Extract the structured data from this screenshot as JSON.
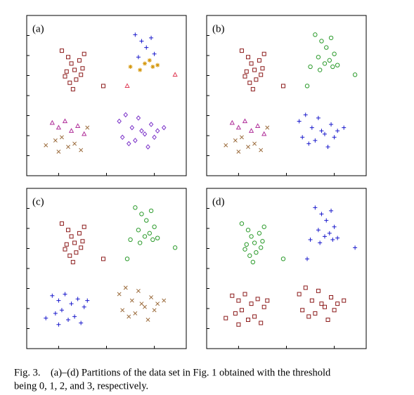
{
  "chart_data": [
    {
      "type": "scatter",
      "title": "(a)",
      "xlim": [
        0,
        100
      ],
      "ylim": [
        0,
        100
      ],
      "xticks": [
        20,
        50,
        80
      ],
      "yticks": [
        12.5,
        25,
        37.5,
        50,
        62.5,
        75,
        87.5
      ],
      "series": [
        {
          "color": "#8b1a1a",
          "marker": "square",
          "x": [
            22,
            26,
            28,
            30,
            24,
            33,
            35,
            27,
            31,
            36,
            29,
            25,
            34,
            48
          ],
          "y": [
            78,
            74,
            70,
            66,
            62,
            72,
            67,
            58,
            60,
            76,
            54,
            65,
            63,
            56
          ]
        },
        {
          "color": "#1a1acc",
          "marker": "plus",
          "x": [
            68,
            72,
            75,
            78,
            80,
            70
          ],
          "y": [
            88,
            84,
            80,
            86,
            76,
            74
          ]
        },
        {
          "color": "#d4960a",
          "marker": "star",
          "x": [
            74,
            77,
            65,
            71,
            79,
            82
          ],
          "y": [
            70,
            72,
            68,
            66,
            68,
            69
          ]
        },
        {
          "color": "#e0405a",
          "marker": "triangle",
          "x": [
            93,
            63
          ],
          "y": [
            63,
            56
          ]
        },
        {
          "color": "#b0309a",
          "marker": "triangle",
          "x": [
            16,
            20,
            24,
            28,
            32,
            36
          ],
          "y": [
            33,
            30,
            34,
            28,
            31,
            26
          ]
        },
        {
          "color": "#9a6a3a",
          "marker": "cross",
          "x": [
            18,
            22,
            26,
            30,
            34,
            12,
            38,
            20
          ],
          "y": [
            22,
            24,
            18,
            20,
            16,
            19,
            30,
            15
          ]
        },
        {
          "color": "#7a30c8",
          "marker": "diamond",
          "x": [
            58,
            62,
            66,
            70,
            74,
            78,
            82,
            86,
            60,
            64,
            68,
            72,
            76,
            80
          ],
          "y": [
            34,
            38,
            30,
            36,
            26,
            32,
            28,
            30,
            24,
            20,
            22,
            28,
            18,
            24
          ]
        }
      ]
    },
    {
      "type": "scatter",
      "title": "(b)",
      "xlim": [
        0,
        100
      ],
      "ylim": [
        0,
        100
      ],
      "xticks": [
        20,
        50,
        80
      ],
      "yticks": [
        12.5,
        25,
        37.5,
        50,
        62.5,
        75,
        87.5
      ],
      "series": [
        {
          "color": "#8b1a1a",
          "marker": "square",
          "x": [
            22,
            26,
            28,
            30,
            24,
            33,
            35,
            27,
            31,
            36,
            29,
            25,
            34,
            48
          ],
          "y": [
            78,
            74,
            70,
            66,
            62,
            72,
            67,
            58,
            60,
            76,
            54,
            65,
            63,
            56
          ]
        },
        {
          "color": "#2a9a2a",
          "marker": "circle",
          "x": [
            68,
            72,
            75,
            78,
            80,
            70,
            74,
            77,
            65,
            71,
            79,
            82,
            93,
            63
          ],
          "y": [
            88,
            84,
            80,
            86,
            76,
            74,
            70,
            72,
            68,
            66,
            68,
            69,
            63,
            56
          ]
        },
        {
          "color": "#b0309a",
          "marker": "triangle",
          "x": [
            16,
            20,
            24,
            28,
            32,
            36
          ],
          "y": [
            33,
            30,
            34,
            28,
            31,
            26
          ]
        },
        {
          "color": "#9a6a3a",
          "marker": "cross",
          "x": [
            18,
            22,
            26,
            30,
            34,
            12,
            38,
            20
          ],
          "y": [
            22,
            24,
            18,
            20,
            16,
            19,
            30,
            15
          ]
        },
        {
          "color": "#1a1acc",
          "marker": "plus",
          "x": [
            58,
            62,
            66,
            70,
            74,
            78,
            82,
            86,
            60,
            64,
            68,
            72,
            76,
            80
          ],
          "y": [
            34,
            38,
            30,
            36,
            26,
            32,
            28,
            30,
            24,
            20,
            22,
            28,
            18,
            24
          ]
        }
      ]
    },
    {
      "type": "scatter",
      "title": "(c)",
      "xlim": [
        0,
        100
      ],
      "ylim": [
        0,
        100
      ],
      "xticks": [
        20,
        50,
        80
      ],
      "yticks": [
        12.5,
        25,
        37.5,
        50,
        62.5,
        75,
        87.5
      ],
      "series": [
        {
          "color": "#8b1a1a",
          "marker": "square",
          "x": [
            22,
            26,
            28,
            30,
            24,
            33,
            35,
            27,
            31,
            36,
            29,
            25,
            34,
            48
          ],
          "y": [
            78,
            74,
            70,
            66,
            62,
            72,
            67,
            58,
            60,
            76,
            54,
            65,
            63,
            56
          ]
        },
        {
          "color": "#2a9a2a",
          "marker": "circle",
          "x": [
            68,
            72,
            75,
            78,
            80,
            70,
            74,
            77,
            65,
            71,
            79,
            82,
            93,
            63
          ],
          "y": [
            88,
            84,
            80,
            86,
            76,
            74,
            70,
            72,
            68,
            66,
            68,
            69,
            63,
            56
          ]
        },
        {
          "color": "#1a1acc",
          "marker": "plus",
          "x": [
            16,
            20,
            24,
            28,
            32,
            36,
            18,
            22,
            26,
            30,
            34,
            12,
            38,
            20
          ],
          "y": [
            33,
            30,
            34,
            28,
            31,
            26,
            22,
            24,
            18,
            20,
            16,
            19,
            30,
            15
          ]
        },
        {
          "color": "#9a6a3a",
          "marker": "cross",
          "x": [
            58,
            62,
            66,
            70,
            74,
            78,
            82,
            86,
            60,
            64,
            68,
            72,
            76,
            80
          ],
          "y": [
            34,
            38,
            30,
            36,
            26,
            32,
            28,
            30,
            24,
            20,
            22,
            28,
            18,
            24
          ]
        }
      ]
    },
    {
      "type": "scatter",
      "title": "(d)",
      "xlim": [
        0,
        100
      ],
      "ylim": [
        0,
        100
      ],
      "xticks": [
        20,
        50,
        80
      ],
      "yticks": [
        12.5,
        25,
        37.5,
        50,
        62.5,
        75,
        87.5
      ],
      "series": [
        {
          "color": "#2a9a2a",
          "marker": "circle",
          "x": [
            22,
            26,
            28,
            30,
            24,
            33,
            35,
            27,
            31,
            36,
            29,
            25,
            34,
            48
          ],
          "y": [
            78,
            74,
            70,
            66,
            62,
            72,
            67,
            58,
            60,
            76,
            54,
            65,
            63,
            56
          ]
        },
        {
          "color": "#1a1acc",
          "marker": "plus",
          "x": [
            68,
            72,
            75,
            78,
            80,
            70,
            74,
            77,
            65,
            71,
            79,
            82,
            93,
            63
          ],
          "y": [
            88,
            84,
            80,
            86,
            76,
            74,
            70,
            72,
            68,
            66,
            68,
            69,
            63,
            56
          ]
        },
        {
          "color": "#8b1a1a",
          "marker": "square",
          "x": [
            16,
            20,
            24,
            28,
            32,
            36,
            18,
            22,
            26,
            30,
            34,
            12,
            38,
            20
          ],
          "y": [
            33,
            30,
            34,
            28,
            31,
            26,
            22,
            24,
            18,
            20,
            16,
            19,
            30,
            15
          ]
        },
        {
          "color": "#8b1a1a",
          "marker": "square",
          "x": [
            58,
            62,
            66,
            70,
            74,
            78,
            82,
            86,
            60,
            64,
            68,
            72,
            76,
            80
          ],
          "y": [
            34,
            38,
            30,
            36,
            26,
            32,
            28,
            30,
            24,
            20,
            22,
            28,
            18,
            24
          ]
        }
      ]
    }
  ],
  "caption": [
    "Fig. 3.    (a)–(d) Partitions of the data set in Fig. 1 obtained with the threshold",
    "being 0, 1, 2, and 3, respectively."
  ]
}
